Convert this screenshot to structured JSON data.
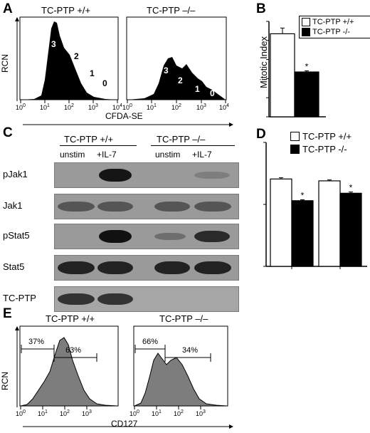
{
  "panels": {
    "A": {
      "letter": "A",
      "left_title": "TC-PTP +/+",
      "right_title": "TC-PTP –/–",
      "ylabel": "RCN",
      "xlabel": "CFDA-SE",
      "left_peaks": [
        "3",
        "2",
        "1",
        "0"
      ],
      "right_peaks": [
        "3",
        "2",
        "1",
        "0"
      ],
      "ticks": [
        "10",
        "10",
        "10",
        "10",
        "10"
      ],
      "tick_exp": [
        "0",
        "1",
        "2",
        "3",
        "4"
      ]
    },
    "B": {
      "letter": "B",
      "ylabel": "Mitotic Index",
      "legend": [
        "TC-PTP +/+",
        "TC-PTP -/-"
      ],
      "asterisk": "*"
    },
    "C": {
      "letter": "C",
      "group1": "TC-PTP +/+",
      "group2": "TC-PTP –/–",
      "lanes": [
        "unstim",
        "+IL-7",
        "unstim",
        "+IL-7"
      ],
      "rows": [
        "pJak1",
        "Jak1",
        "pStat5",
        "Stat5",
        "TC-PTP"
      ]
    },
    "D": {
      "letter": "D",
      "legend": [
        "TC-PTP +/+",
        "TC-PTP -/-"
      ],
      "asterisks": [
        "*",
        "*"
      ]
    },
    "E": {
      "letter": "E",
      "left_title": "TC-PTP +/+",
      "right_title": "TC-PTP –/–",
      "ylabel": "RCN",
      "xlabel": "CD127",
      "left_gates": [
        "37%",
        "63%"
      ],
      "right_gates": [
        "66%",
        "34%"
      ],
      "ticks": [
        "10",
        "10",
        "10",
        "10"
      ],
      "tick_exp": [
        "0",
        "1",
        "2",
        "3"
      ]
    }
  },
  "chart_data": [
    {
      "type": "bar",
      "panel": "B",
      "ylabel": "Mitotic Index",
      "categories": [
        ""
      ],
      "series": [
        {
          "name": "TC-PTP +/+",
          "values": [
            4.35
          ],
          "error": [
            0.3
          ],
          "color": "#ffffff"
        },
        {
          "name": "TC-PTP -/-",
          "values": [
            2.35
          ],
          "error": [
            0.06
          ],
          "color": "#000000"
        }
      ],
      "ylim": [
        0,
        5
      ],
      "legend": "top-right",
      "grid": false
    },
    {
      "type": "bar",
      "panel": "D",
      "ylabel": "",
      "categories": [
        "",
        ""
      ],
      "series": [
        {
          "name": "TC-PTP +/+",
          "values": [
            1.41,
            1.38
          ],
          "error": [
            0.02,
            0.015
          ],
          "color": "#ffffff"
        },
        {
          "name": "TC-PTP -/-",
          "values": [
            1.06,
            1.18
          ],
          "error": [
            0.015,
            0.02
          ],
          "color": "#000000"
        }
      ],
      "ylim": [
        0,
        2
      ],
      "legend": "top",
      "grid": false
    }
  ]
}
